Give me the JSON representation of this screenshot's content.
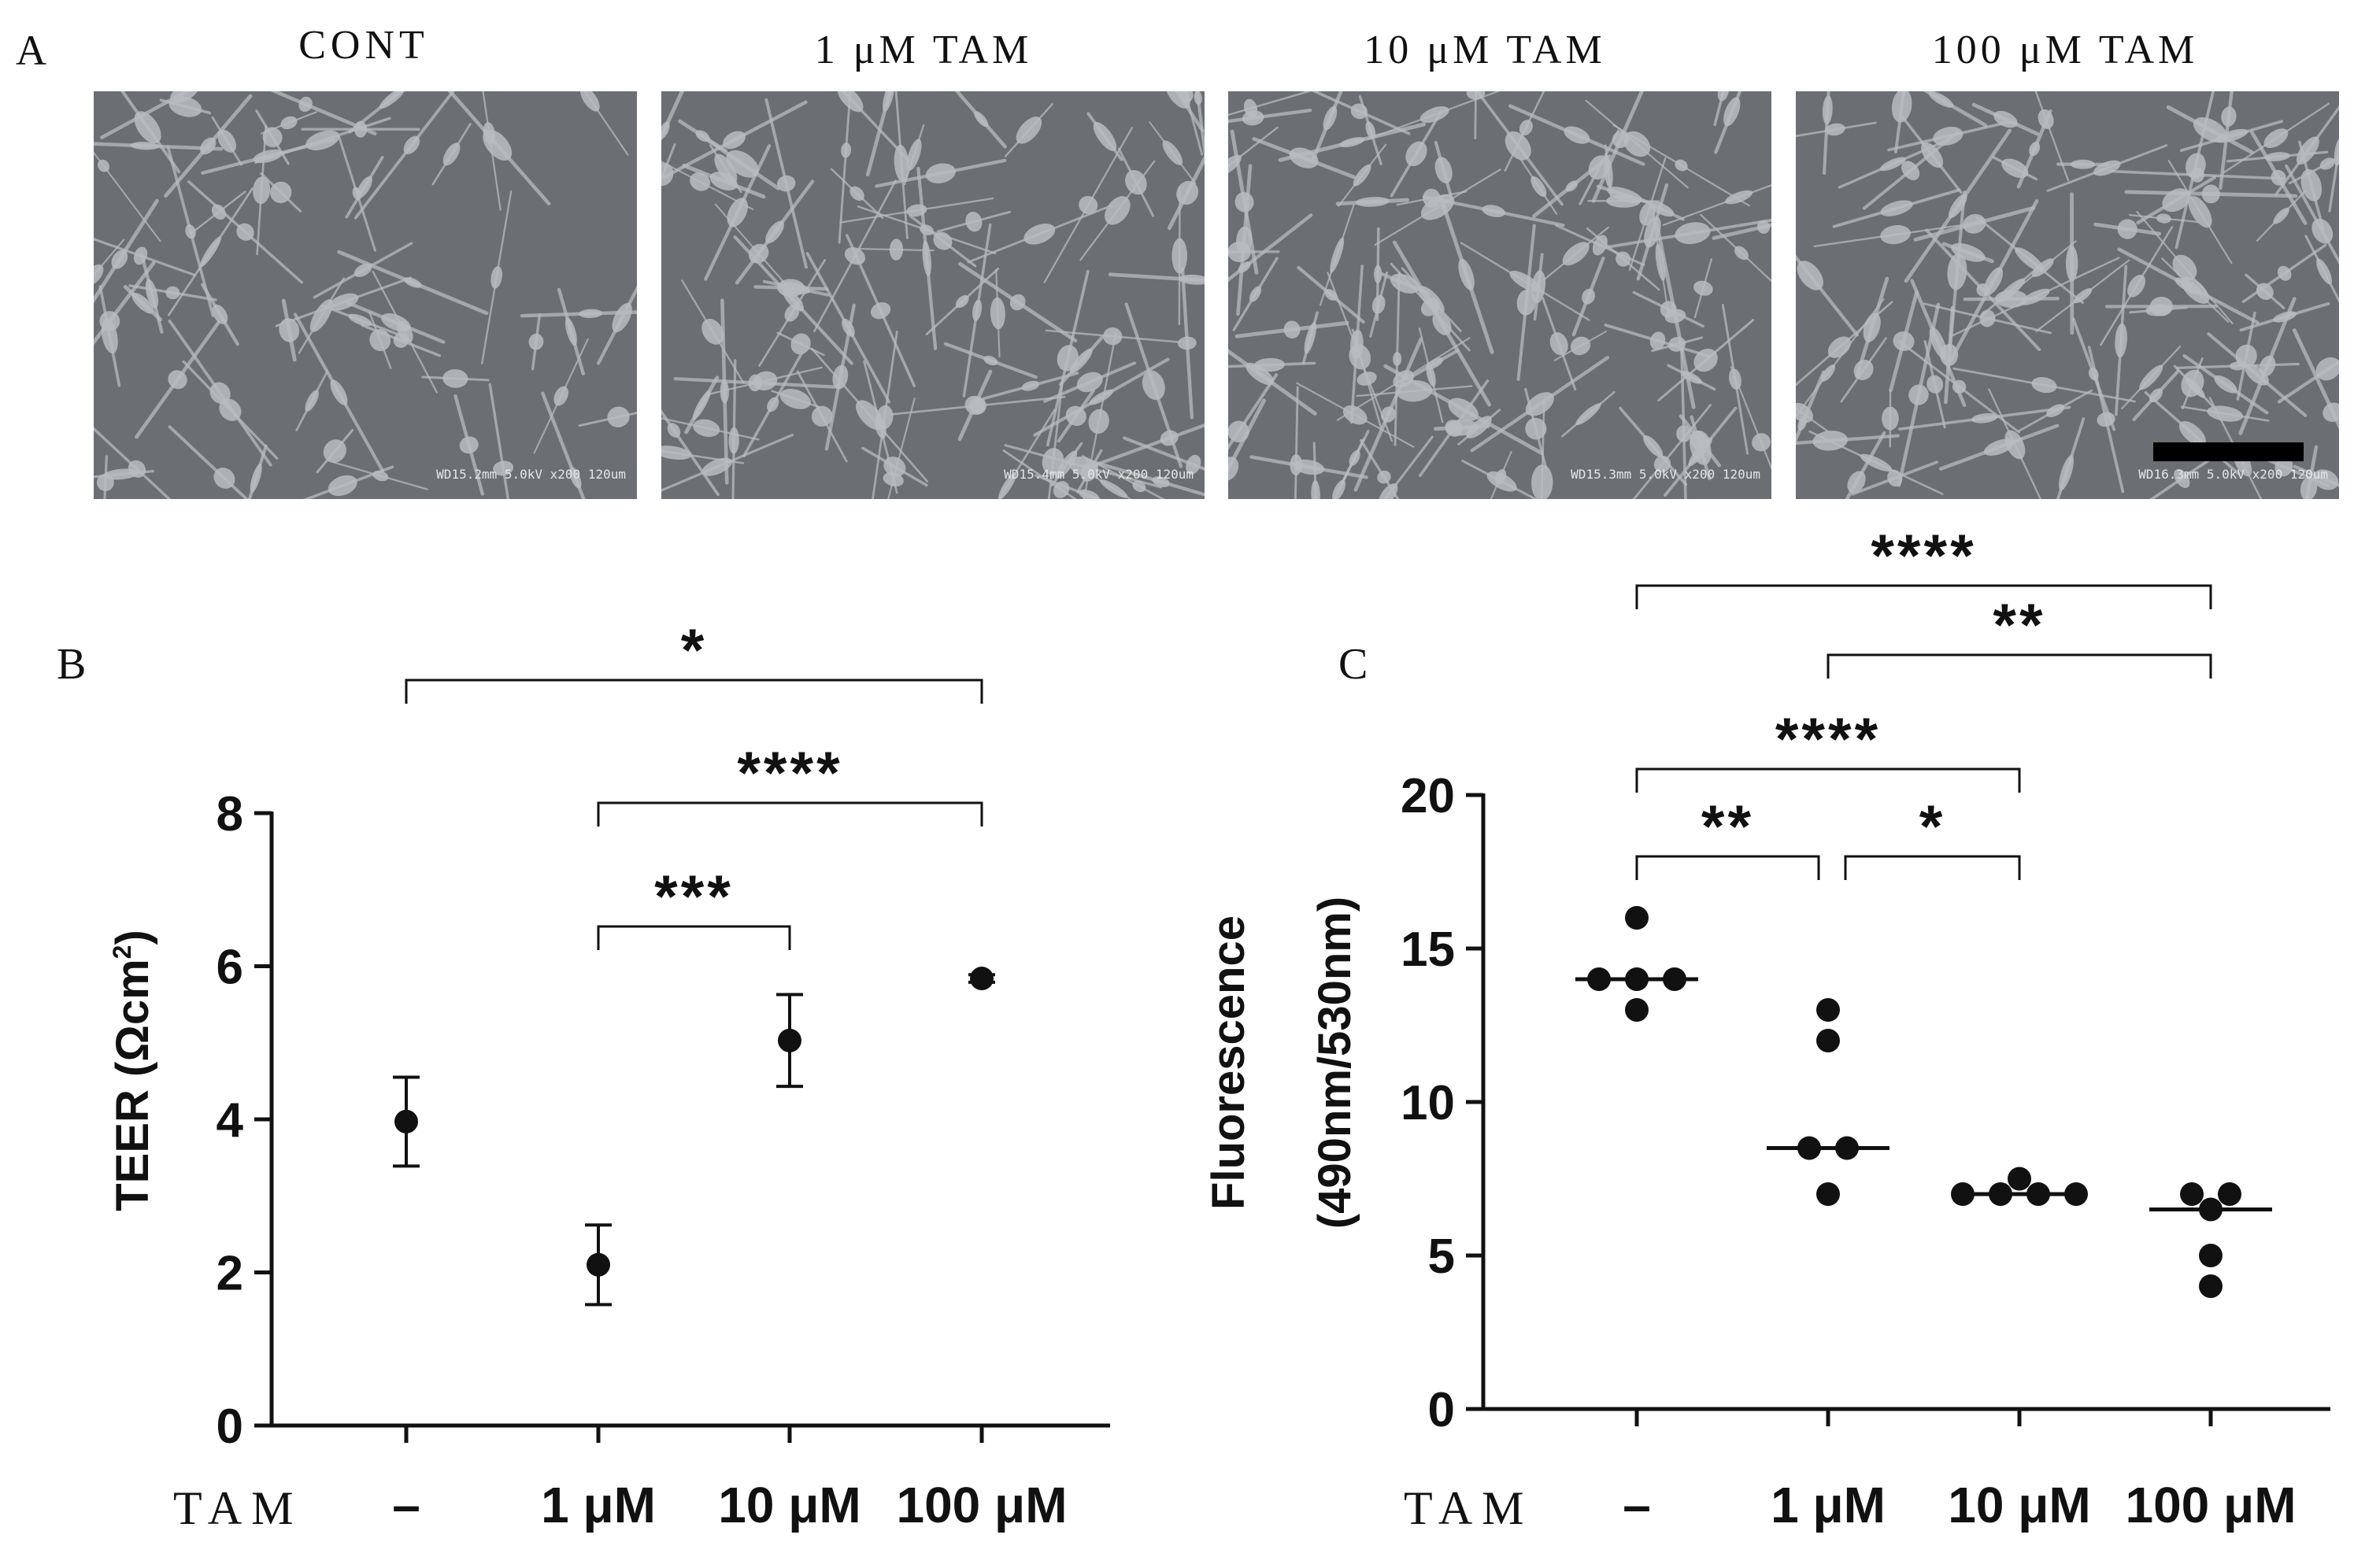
{
  "panel_labels": {
    "a": "A",
    "b": "B",
    "c": "C"
  },
  "micrographs": [
    {
      "title": "CONT",
      "info": "WD15.2mm  5.0kV  x200   120um"
    },
    {
      "title": "1 μM TAM",
      "info": "WD15.4mm  5.0kV  x200   120um"
    },
    {
      "title": "10 μM TAM",
      "info": "WD15.3mm  5.0kV  x200   120um"
    },
    {
      "title": "100 μM TAM",
      "info": "WD16.3mm  5.0kV  x200   120um"
    }
  ],
  "x_axis_prefix": "TAM",
  "colors": {
    "ink": "#111111",
    "sem_bg": "#6b6e72",
    "sem_cell": "#b9bcbf",
    "scale_bar": "#000000"
  },
  "chart_data": [
    {
      "type": "scatter",
      "panel": "B",
      "ylabel": "TEER (Ωcm²)",
      "ylabel_main": "TEER (Ωcm",
      "ylabel_sup": "2",
      "ylabel_close": ")",
      "ylim": [
        0,
        8
      ],
      "yticks": [
        0,
        2,
        4,
        6,
        8
      ],
      "categories": [
        "–",
        "1 μM",
        "10 μM",
        "100 μM"
      ],
      "means": [
        3.97,
        2.1,
        5.03,
        5.84
      ],
      "errors": [
        0.58,
        0.52,
        0.6,
        0.05
      ],
      "comparisons": [
        {
          "from": 0,
          "to": 3,
          "label": "*"
        },
        {
          "from": 1,
          "to": 3,
          "label": "****"
        },
        {
          "from": 1,
          "to": 2,
          "label": "***"
        }
      ]
    },
    {
      "type": "scatter",
      "panel": "C",
      "ylabel_line1": "Fluorescence",
      "ylabel_line2": "(490nm/530nm)",
      "ylim": [
        0,
        20
      ],
      "yticks": [
        0,
        5,
        10,
        15,
        20
      ],
      "categories": [
        "–",
        "1 μM",
        "10 μM",
        "100 μM"
      ],
      "points": [
        [
          16,
          14,
          14,
          14,
          13
        ],
        [
          13,
          12,
          8.5,
          8.5,
          7
        ],
        [
          7.5,
          7,
          7,
          7,
          7
        ],
        [
          7,
          7,
          6.5,
          5,
          4
        ]
      ],
      "medians": [
        14,
        8.5,
        7,
        6.5
      ],
      "comparisons": [
        {
          "from": 0,
          "to": 3,
          "label": "****"
        },
        {
          "from": 1,
          "to": 3,
          "label": "**"
        },
        {
          "from": 0,
          "to": 2,
          "label": "****"
        },
        {
          "from": 0,
          "to": 1,
          "label": "**"
        },
        {
          "from": 1,
          "to": 2,
          "label": "*"
        }
      ]
    }
  ]
}
